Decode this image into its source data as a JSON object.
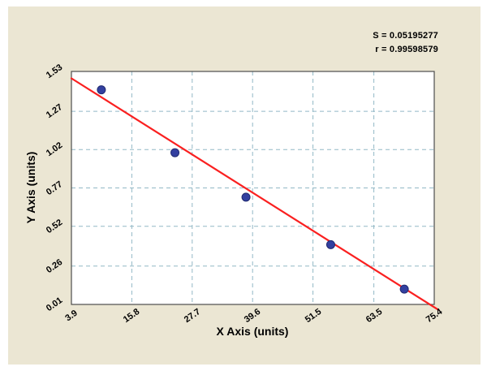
{
  "panel": {
    "background": "#ebe6d3"
  },
  "stats": {
    "s_label": "S = 0.05195277",
    "r_label": "r = 0.99598579"
  },
  "chart_data": {
    "type": "scatter",
    "title": "",
    "xlabel": "X Axis (units)",
    "ylabel": "Y Axis (units)",
    "xlim": [
      3.9,
      75.4
    ],
    "ylim": [
      0.01,
      1.53
    ],
    "x_ticks": [
      3.9,
      15.8,
      27.7,
      39.6,
      51.5,
      63.5,
      75.4
    ],
    "y_ticks": [
      0.01,
      0.26,
      0.52,
      0.77,
      1.02,
      1.27,
      1.53
    ],
    "grid": "dashed",
    "legend": "none",
    "points": [
      {
        "x": 9.8,
        "y": 1.41
      },
      {
        "x": 24.3,
        "y": 1.0
      },
      {
        "x": 38.3,
        "y": 0.71
      },
      {
        "x": 55.0,
        "y": 0.4
      },
      {
        "x": 69.5,
        "y": 0.11
      }
    ],
    "regression_line": {
      "x1": 3.9,
      "y1": 1.485,
      "x2": 76.2,
      "y2": -0.025
    },
    "colors": {
      "point": "#3340a0",
      "point_edge": "#202a70",
      "line": "#fa2020",
      "grid": "#92b8c6",
      "border": "#4d4d4d",
      "plot_bg": "#ffffff"
    }
  }
}
